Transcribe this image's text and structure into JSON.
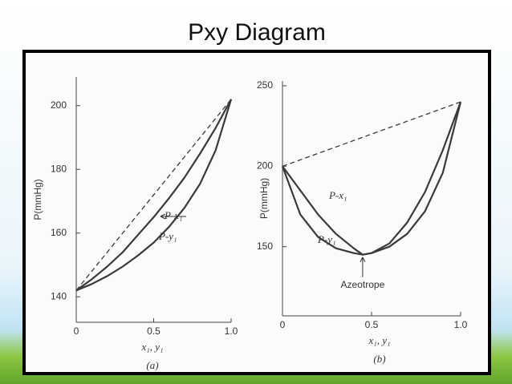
{
  "slide": {
    "title": "Pxy Diagram"
  },
  "chart_data": [
    {
      "type": "line",
      "caption": "(a)",
      "xlabel": "x₁, y₁",
      "ylabel": "P(mmHg)",
      "x": [
        0,
        0.1,
        0.2,
        0.3,
        0.4,
        0.5,
        0.6,
        0.7,
        0.8,
        0.9,
        1.0
      ],
      "series": [
        {
          "name": "P-x₁",
          "color": "#3a3a3a",
          "values": [
            142,
            145.5,
            149.5,
            154,
            159.5,
            165,
            171,
            177.5,
            185,
            193,
            202
          ]
        },
        {
          "name": "P-y₁",
          "color": "#3a3a3a",
          "values": [
            142,
            144,
            146.5,
            149.5,
            153,
            157,
            162,
            168,
            175.5,
            186,
            202
          ]
        }
      ],
      "reference_line": {
        "x": [
          0,
          1
        ],
        "values": [
          142,
          202
        ],
        "style": "dashed",
        "color": "#3a3a3a"
      },
      "xlim": [
        0,
        1
      ],
      "ylim": [
        132,
        209
      ],
      "xticks": [
        0,
        0.5,
        {
          "value": 1,
          "label": "1.0"
        }
      ],
      "yticks": [
        140,
        160,
        180,
        200
      ]
    },
    {
      "type": "line",
      "caption": "(b)",
      "xlabel": "x₁, y₁",
      "ylabel": "P(mmHg)",
      "x": [
        0,
        0.1,
        0.2,
        0.3,
        0.4,
        0.45,
        0.5,
        0.6,
        0.7,
        0.8,
        0.9,
        1.0
      ],
      "series": [
        {
          "name": "P-x₁",
          "color": "#3a3a3a",
          "values": [
            200,
            185,
            170,
            158,
            149,
            145,
            146,
            152,
            165,
            184,
            210,
            240
          ]
        },
        {
          "name": "P-y₁",
          "color": "#3a3a3a",
          "values": [
            200,
            170,
            156,
            149,
            146,
            145,
            146,
            150,
            158,
            172,
            196,
            240
          ]
        }
      ],
      "reference_line": {
        "x": [
          0,
          1
        ],
        "values": [
          200,
          240
        ],
        "style": "dashed",
        "color": "#3a3a3a"
      },
      "annotations": [
        "Azeotrope"
      ],
      "xlim": [
        0,
        1
      ],
      "ylim": [
        107,
        253
      ],
      "xticks": [
        0,
        0.5,
        {
          "value": 1,
          "label": "1.0"
        }
      ],
      "yticks": [
        150,
        200,
        250
      ]
    }
  ]
}
